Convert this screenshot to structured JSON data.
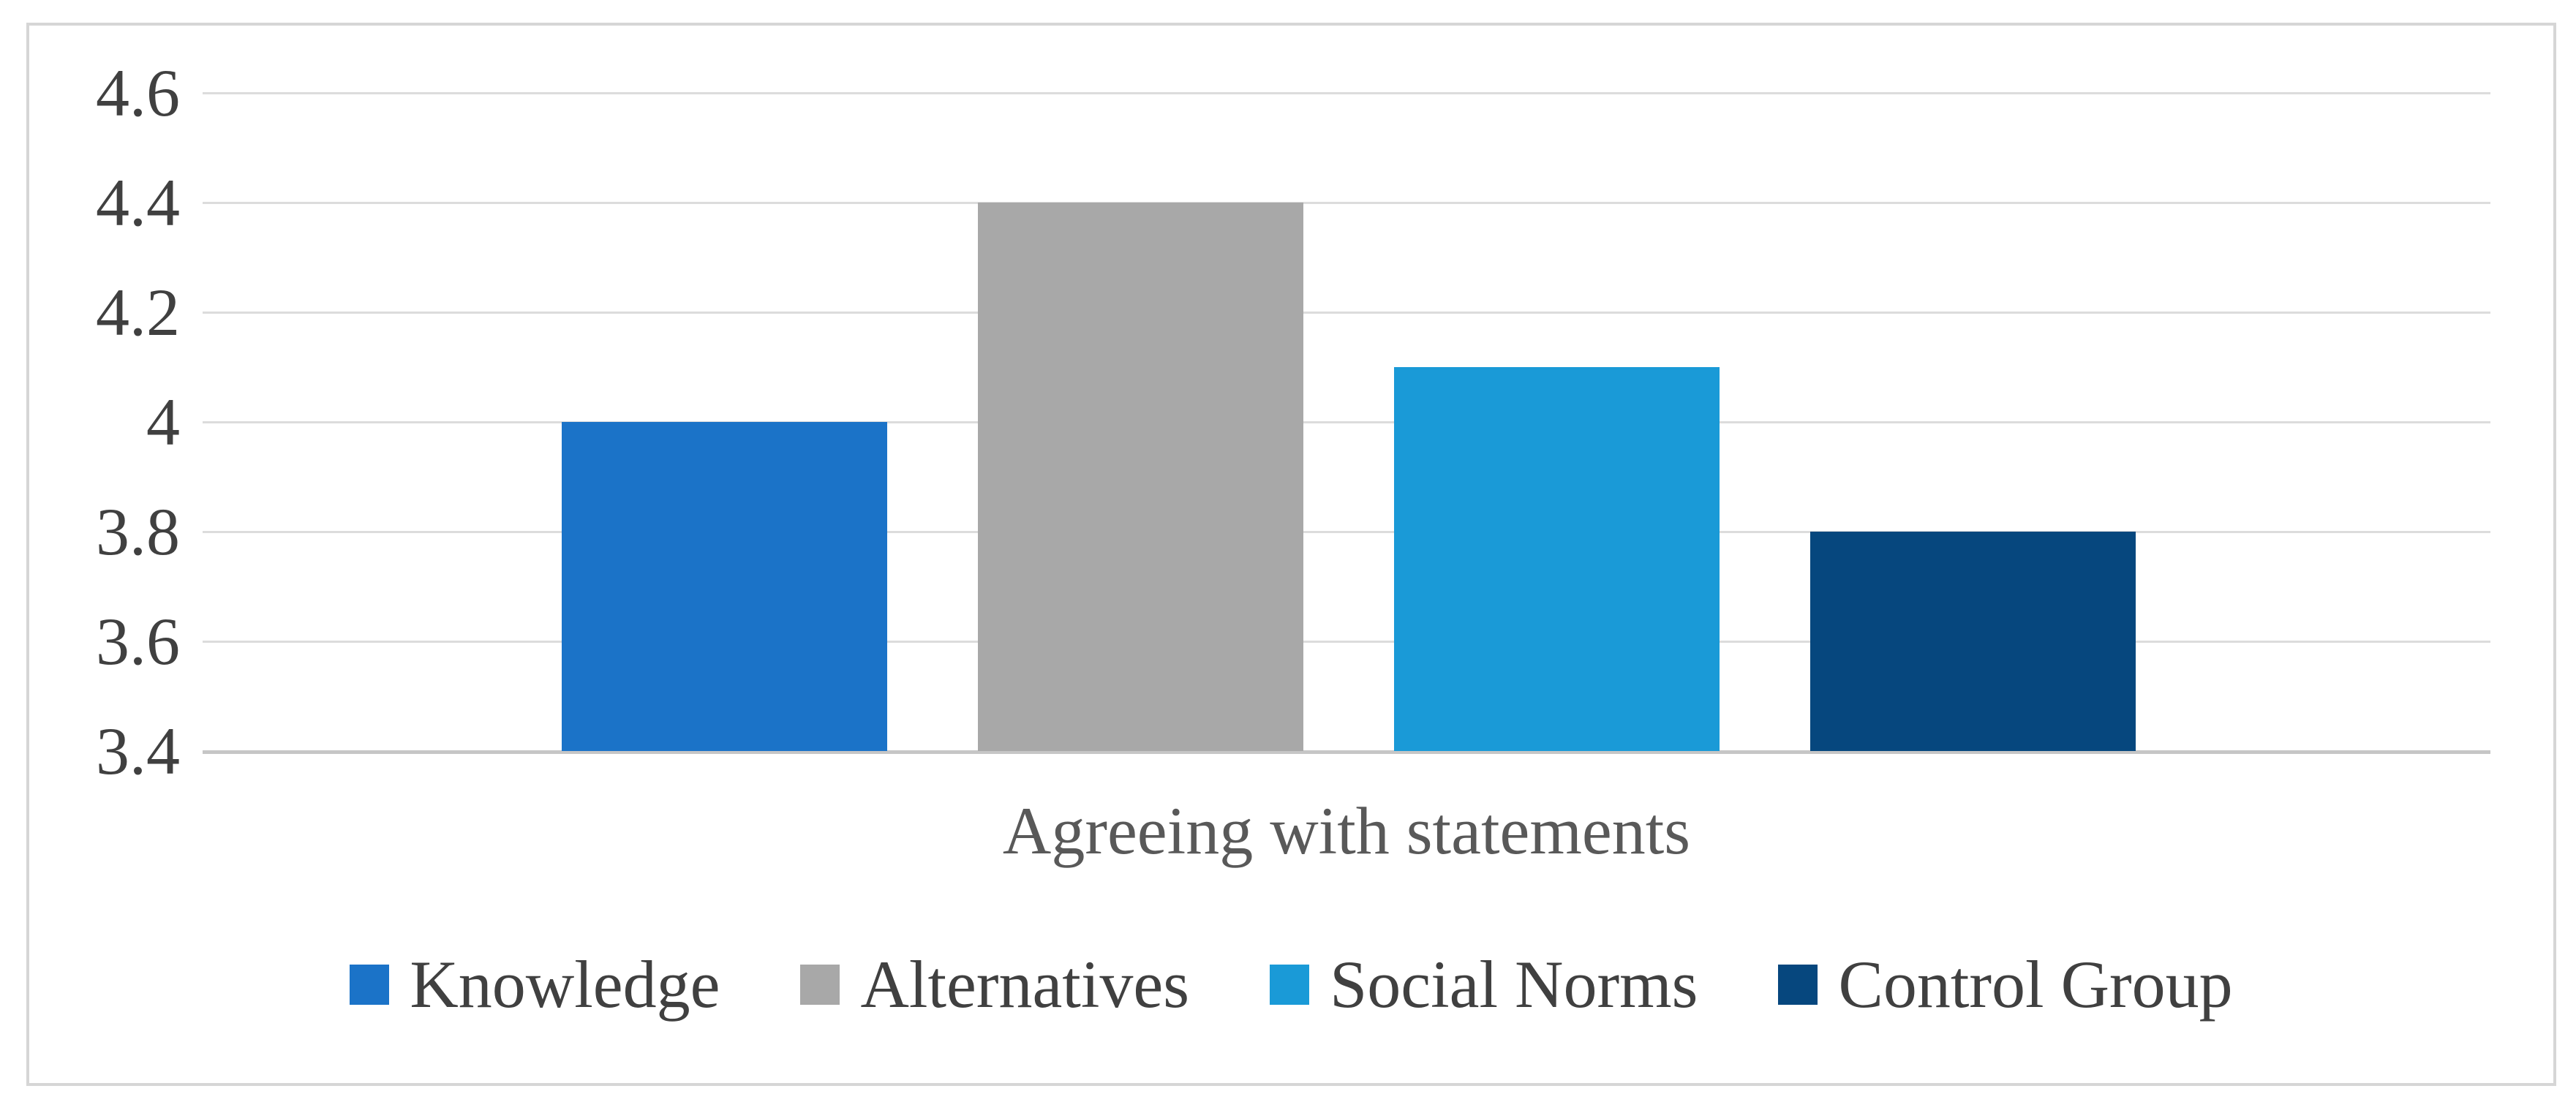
{
  "chart_data": {
    "type": "bar",
    "categories": [
      "Knowledge",
      "Alternatives",
      "Social Norms",
      "Control Group"
    ],
    "values": [
      4.0,
      4.4,
      4.1,
      3.8
    ],
    "series_colors": [
      "#1B73C8",
      "#A8A8A8",
      "#1A9AD7",
      "#06477E"
    ],
    "title": "",
    "xlabel": "Agreeing with statements",
    "ylabel": "",
    "ylim": [
      3.4,
      4.6
    ],
    "ytick_step": 0.2,
    "ytick_labels": [
      "4.6",
      "4.4",
      "4.2",
      "4",
      "3.8",
      "3.6",
      "3.4"
    ],
    "grid": true,
    "legend_position": "bottom",
    "legend": [
      {
        "label": "Knowledge",
        "color": "#1B73C8"
      },
      {
        "label": "Alternatives",
        "color": "#A8A8A8"
      },
      {
        "label": "Social Norms",
        "color": "#1A9AD7"
      },
      {
        "label": "Control Group",
        "color": "#06477E"
      }
    ]
  },
  "colors": {
    "gridline": "#dcdcdc",
    "axis_baseline": "#c6c6c6",
    "frame_border": "#d6d6d6",
    "tick_text": "#404040",
    "axis_title_text": "#595959",
    "legend_text": "#404040",
    "background": "#ffffff"
  }
}
